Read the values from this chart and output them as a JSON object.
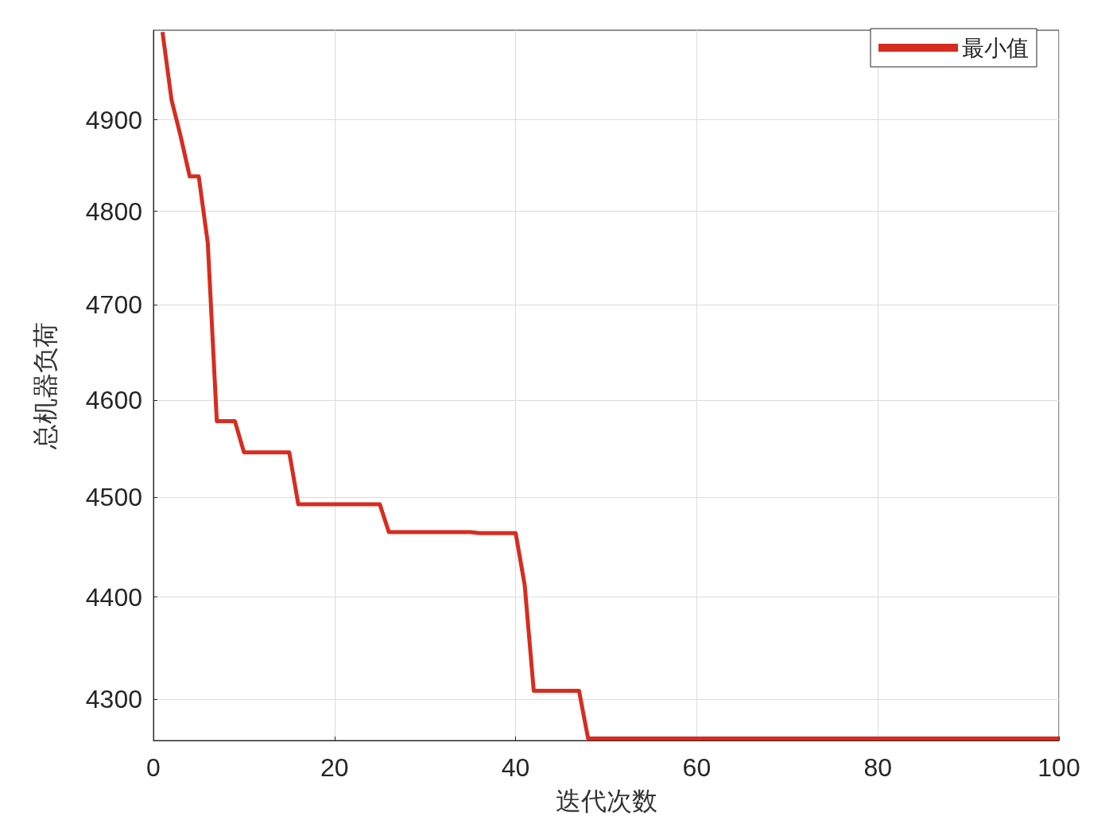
{
  "chart_data": {
    "type": "line",
    "xlabel": "迭代次数",
    "ylabel": "总机器负荷",
    "x": [
      1,
      2,
      3,
      4,
      5,
      6,
      7,
      9,
      10,
      15,
      16,
      25,
      26,
      35,
      36,
      40,
      41,
      42,
      47,
      48,
      100
    ],
    "series": [
      {
        "name": "最小值",
        "color": "#d62d20",
        "values": [
          4998,
          4922,
          4882,
          4838,
          4838,
          4766,
          4578,
          4578,
          4546,
          4546,
          4493,
          4493,
          4465,
          4465,
          4464,
          4464,
          4412,
          4308,
          4308,
          4262,
          4262
        ]
      }
    ],
    "xlim": [
      0,
      100
    ],
    "xticks": [
      0,
      20,
      40,
      60,
      80,
      100
    ],
    "ylim": [
      4260,
      5000
    ],
    "yticks": [
      4300,
      4400,
      4500,
      4600,
      4700,
      4800,
      4900
    ],
    "log": true,
    "grid": true,
    "legend": "top right"
  }
}
